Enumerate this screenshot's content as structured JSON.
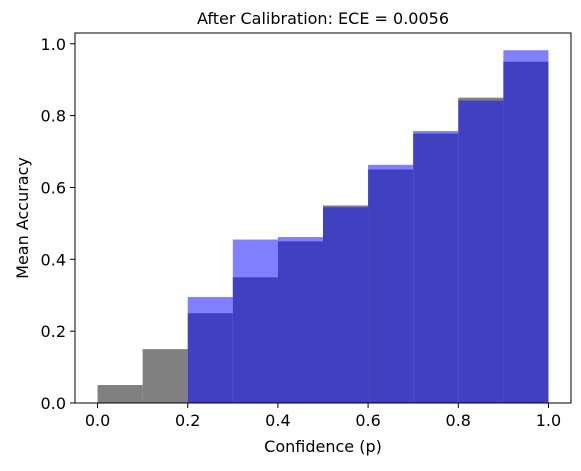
{
  "chart_data": {
    "type": "bar",
    "title": "After Calibration: ECE = 0.0056",
    "xlabel": "Confidence (p)",
    "ylabel": "Mean Accuracy",
    "xlim": [
      -0.05,
      1.05
    ],
    "ylim": [
      0,
      1.03
    ],
    "xticks": [
      "0.0",
      "0.2",
      "0.4",
      "0.6",
      "0.8",
      "1.0"
    ],
    "yticks": [
      "0.0",
      "0.2",
      "0.4",
      "0.6",
      "0.8",
      "1.0"
    ],
    "grid": false,
    "bin_width": 0.1,
    "series": [
      {
        "color": "#808080",
        "opacity": 1.0,
        "x": [
          0.0,
          0.1,
          0.2,
          0.3,
          0.4,
          0.5,
          0.6,
          0.7,
          0.8,
          0.9
        ],
        "values": [
          0.05,
          0.15,
          0.25,
          0.35,
          0.45,
          0.55,
          0.65,
          0.75,
          0.85,
          0.95
        ]
      },
      {
        "color": "#0000ff",
        "opacity": 0.5,
        "x": [
          0.2,
          0.3,
          0.4,
          0.5,
          0.6,
          0.7,
          0.8,
          0.9
        ],
        "values": [
          0.295,
          0.455,
          0.462,
          0.545,
          0.663,
          0.757,
          0.842,
          0.982
        ]
      }
    ]
  }
}
